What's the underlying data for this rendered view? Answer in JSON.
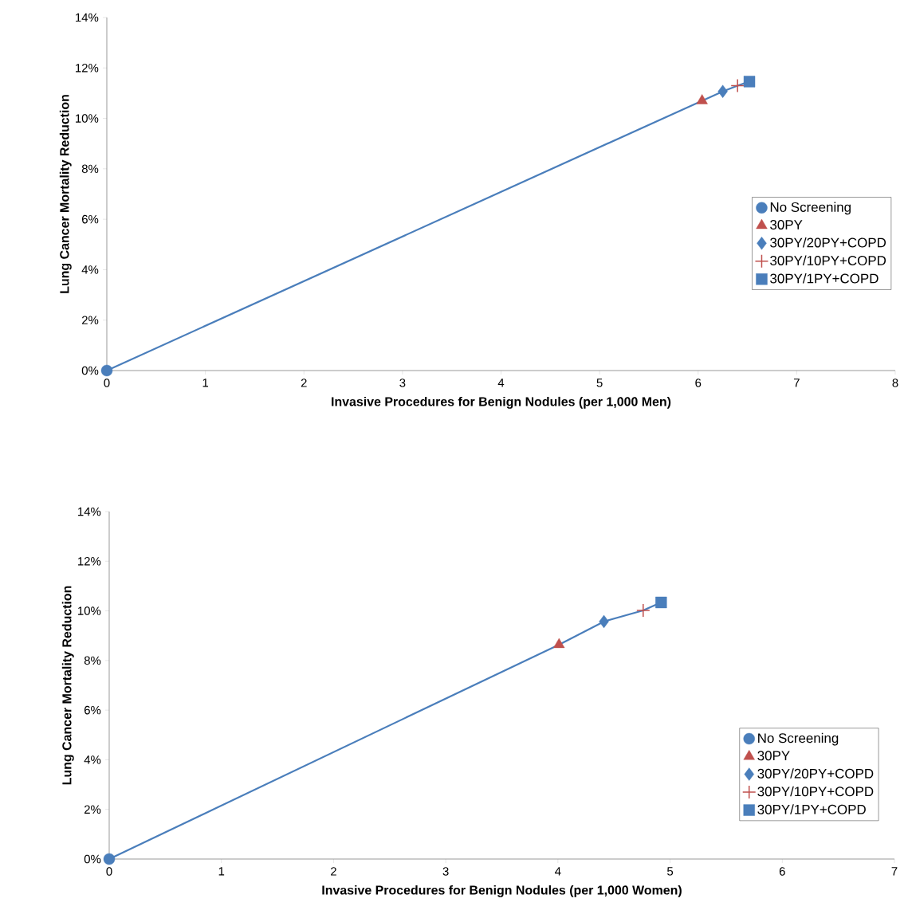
{
  "chart_data": [
    {
      "type": "scatter",
      "xlabel": "Invasive Procedures for Benign Nodules (per 1,000 Men)",
      "ylabel": "Lung Cancer Mortality Reduction",
      "xlim": [
        0,
        8
      ],
      "xticks": [
        0,
        1,
        2,
        3,
        4,
        5,
        6,
        7,
        8
      ],
      "ylim": [
        0,
        14
      ],
      "yticks": [
        {
          "value": 0,
          "label": "0%"
        },
        {
          "value": 2,
          "label": "2%"
        },
        {
          "value": 4,
          "label": "4%"
        },
        {
          "value": 6,
          "label": "6%"
        },
        {
          "value": 8,
          "label": "8%"
        },
        {
          "value": 10,
          "label": "10%"
        },
        {
          "value": 12,
          "label": "12%"
        },
        {
          "value": 14,
          "label": "14%"
        }
      ],
      "legend": "right",
      "series": [
        {
          "type": "line",
          "marker": "none",
          "color": "#4a7ebb",
          "x": [
            0,
            6.04,
            6.25,
            6.4,
            6.52
          ],
          "values": [
            0,
            10.7,
            11.07,
            11.3,
            11.46
          ]
        },
        {
          "name": "No Screening",
          "marker": "circle",
          "color": "#4a7ebb",
          "x": [
            0
          ],
          "values": [
            0
          ]
        },
        {
          "name": "30PY",
          "marker": "triangle",
          "color": "#c0504d",
          "x": [
            6.04
          ],
          "values": [
            10.7
          ]
        },
        {
          "name": "30PY/20PY+COPD",
          "marker": "diamond",
          "color": "#4a7ebb",
          "x": [
            6.25
          ],
          "values": [
            11.07
          ]
        },
        {
          "name": "30PY/10PY+COPD",
          "marker": "cross",
          "color": "#c0504d",
          "x": [
            6.4
          ],
          "values": [
            11.3
          ]
        },
        {
          "name": "30PY/1PY+COPD",
          "marker": "square",
          "color": "#4a7ebb",
          "x": [
            6.52
          ],
          "values": [
            11.46
          ]
        }
      ]
    },
    {
      "type": "scatter",
      "xlabel": "Invasive Procedures for Benign Nodules (per 1,000 Women)",
      "ylabel": "Lung Cancer  Mortality Reduction",
      "xlim": [
        0,
        7
      ],
      "xticks": [
        0,
        1,
        2,
        3,
        4,
        5,
        6,
        7
      ],
      "ylim": [
        0,
        14
      ],
      "yticks": [
        {
          "value": 0,
          "label": "0%"
        },
        {
          "value": 2,
          "label": "2%"
        },
        {
          "value": 4,
          "label": "4%"
        },
        {
          "value": 6,
          "label": "6%"
        },
        {
          "value": 8,
          "label": "8%"
        },
        {
          "value": 10,
          "label": "10%"
        },
        {
          "value": 12,
          "label": "12%"
        },
        {
          "value": 14,
          "label": "14%"
        }
      ],
      "legend": "bottom right",
      "series": [
        {
          "type": "line",
          "marker": "none",
          "color": "#4a7ebb",
          "x": [
            0,
            4.01,
            4.41,
            4.76,
            4.92
          ],
          "values": [
            0,
            8.64,
            9.57,
            10.02,
            10.34
          ]
        },
        {
          "name": "No Screening",
          "marker": "circle",
          "color": "#4a7ebb",
          "x": [
            0
          ],
          "values": [
            0
          ]
        },
        {
          "name": "30PY",
          "marker": "triangle",
          "color": "#c0504d",
          "x": [
            4.01
          ],
          "values": [
            8.64
          ]
        },
        {
          "name": "30PY/20PY+COPD",
          "marker": "diamond",
          "color": "#4a7ebb",
          "x": [
            4.41
          ],
          "values": [
            9.57
          ]
        },
        {
          "name": "30PY/10PY+COPD",
          "marker": "cross",
          "color": "#c0504d",
          "x": [
            4.76
          ],
          "values": [
            10.02
          ]
        },
        {
          "name": "30PY/1PY+COPD",
          "marker": "square",
          "color": "#4a7ebb",
          "x": [
            4.92
          ],
          "values": [
            10.34
          ]
        }
      ]
    }
  ]
}
